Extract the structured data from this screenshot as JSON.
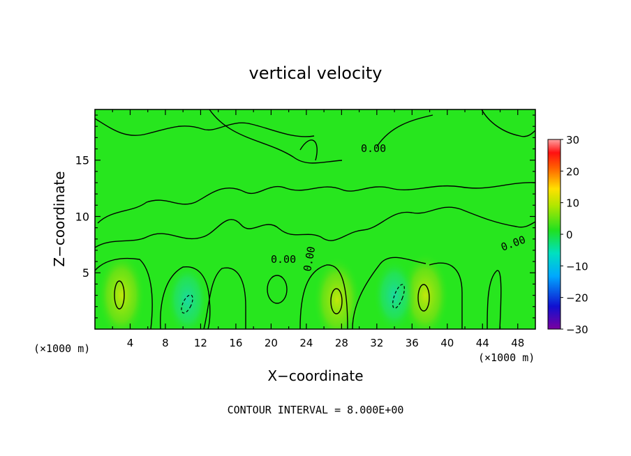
{
  "chart_data": {
    "type": "heatmap",
    "title": "vertical velocity",
    "xlabel": "X−coordinate",
    "ylabel": "Z−coordinate",
    "x_unit": "(×1000 m)",
    "y_unit": "(×1000 m)",
    "xlim": [
      0,
      50
    ],
    "ylim": [
      0,
      19.5
    ],
    "x_ticks": [
      4,
      8,
      12,
      16,
      20,
      24,
      28,
      32,
      36,
      40,
      44,
      48
    ],
    "y_ticks": [
      5,
      10,
      15
    ],
    "colorbar": {
      "range": [
        -30,
        30
      ],
      "ticks": [
        30,
        20,
        10,
        0,
        -10,
        -20,
        -30
      ],
      "tick_labels": [
        "30",
        "20",
        "10",
        "0",
        "−10",
        "−20",
        "−30"
      ]
    },
    "contour_interval_text": "CONTOUR INTERVAL = 8.000E+00",
    "contour_labels": [
      "0.00",
      "0.00",
      "0.00",
      "0.00"
    ],
    "updraft_centers": [
      {
        "x": 3,
        "z": 3,
        "w": 8
      },
      {
        "x": 27.5,
        "z": 2.6,
        "w": 8
      },
      {
        "x": 37.5,
        "z": 3,
        "w": 8
      }
    ],
    "downdraft_centers": [
      {
        "x": 10.5,
        "z": 2.6,
        "w": -8
      },
      {
        "x": 34,
        "z": 3,
        "w": -8
      }
    ],
    "colors": {
      "background_field": "#27e61e",
      "positive": "#b8e60a",
      "negative": "#18d8a8"
    }
  }
}
